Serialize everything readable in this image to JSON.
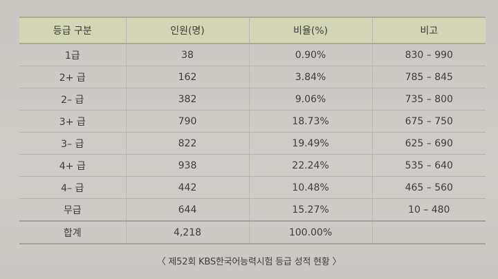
{
  "table": {
    "headers": [
      "등급 구분",
      "인원(명)",
      "비율(%)",
      "비고"
    ],
    "rows": [
      [
        "1급",
        "38",
        "0.90%",
        "830 – 990"
      ],
      [
        "2+ 급",
        "162",
        "3.84%",
        "785 – 845"
      ],
      [
        "2– 급",
        "382",
        "9.06%",
        "735 – 800"
      ],
      [
        "3+ 급",
        "790",
        "18.73%",
        "675 – 750"
      ],
      [
        "3– 급",
        "822",
        "19.49%",
        "625 – 690"
      ],
      [
        "4+ 급",
        "938",
        "22.24%",
        "535 – 640"
      ],
      [
        "4– 급",
        "442",
        "10.48%",
        "465 – 560"
      ],
      [
        "무급",
        "644",
        "15.27%",
        "10 – 480"
      ]
    ],
    "total": [
      "합계",
      "4,218",
      "100.00%",
      ""
    ]
  },
  "caption": "〈 제52회 KBS한국어능력시험 등급 성적 현황 〉",
  "colors": {
    "header_bg": "#d3d6b4",
    "page_bg": "#cbc9c4"
  }
}
